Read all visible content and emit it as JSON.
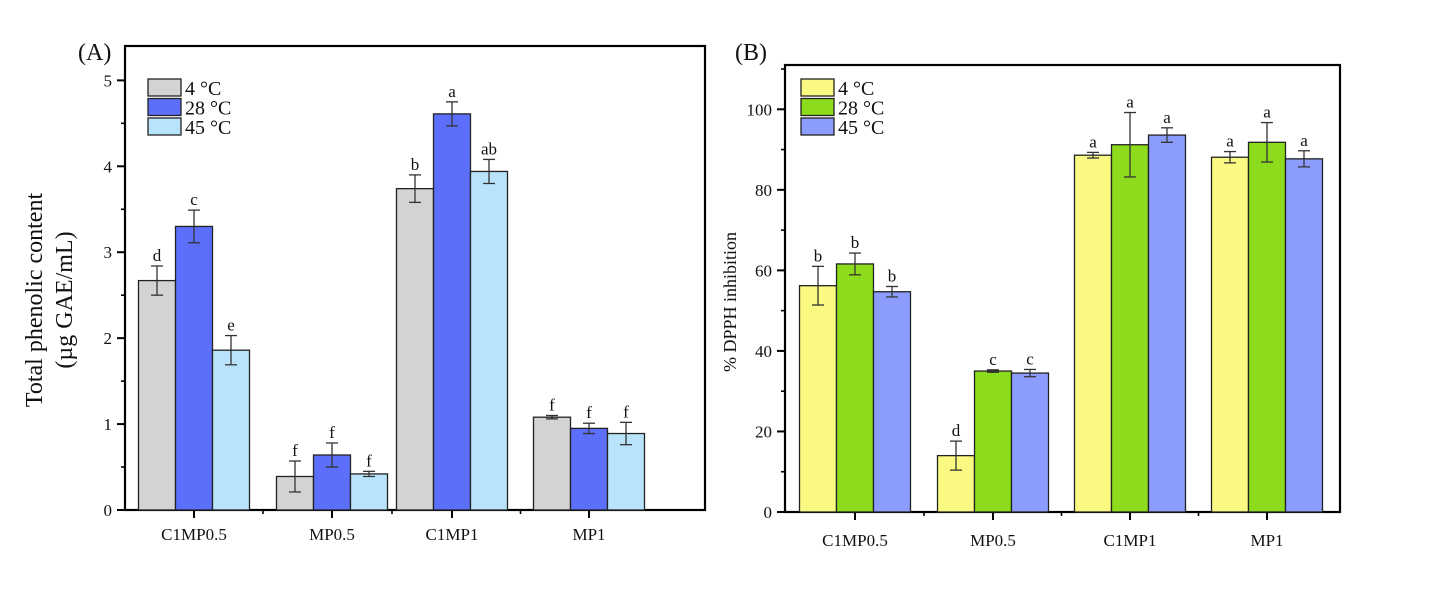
{
  "chart_data": [
    {
      "type": "bar",
      "panel": "(A)",
      "title": "",
      "xlabel": "",
      "ylabel_lines": [
        "Total phenolic content",
        "(µg GAE/mL)"
      ],
      "categories": [
        "C1MP0.5",
        "MP0.5",
        "C1MP1",
        "MP1"
      ],
      "ylim": [
        0,
        5.4
      ],
      "yticks": [
        0,
        1,
        2,
        3,
        4,
        5
      ],
      "ytick_labels": [
        "0",
        "1",
        "2",
        "3",
        "4",
        "5"
      ],
      "legend_position": "top-left",
      "grid": false,
      "series": [
        {
          "name": "4 °C",
          "color": "#d3d3d3",
          "values": [
            2.67,
            0.39,
            3.74,
            1.08
          ],
          "errors": [
            0.17,
            0.18,
            0.16,
            0.02
          ],
          "letters": [
            "d",
            "f",
            "b",
            "f"
          ]
        },
        {
          "name": "28 °C",
          "color": "#5b6ffb",
          "values": [
            3.3,
            0.64,
            4.61,
            0.95
          ],
          "errors": [
            0.19,
            0.14,
            0.14,
            0.06
          ],
          "letters": [
            "c",
            "f",
            "a",
            "f"
          ]
        },
        {
          "name": "45 °C",
          "color": "#b8e3fb",
          "values": [
            1.86,
            0.42,
            3.94,
            0.89
          ],
          "errors": [
            0.17,
            0.03,
            0.14,
            0.13
          ],
          "letters": [
            "e",
            "f",
            "ab",
            "f"
          ]
        }
      ]
    },
    {
      "type": "bar",
      "panel": "(B)",
      "title": "",
      "xlabel": "",
      "ylabel_lines": [
        "% DPPH inhibition"
      ],
      "categories": [
        "C1MP0.5",
        "MP0.5",
        "C1MP1",
        "MP1"
      ],
      "ylim": [
        0,
        111
      ],
      "yticks": [
        0,
        20,
        40,
        60,
        80,
        100
      ],
      "ytick_labels": [
        "0",
        "20",
        "40",
        "60",
        "80",
        "100"
      ],
      "legend_position": "top-left",
      "grid": false,
      "series": [
        {
          "name": "4 °C",
          "color": "#fafa82",
          "values": [
            56.2,
            14.0,
            88.6,
            88.1
          ],
          "errors": [
            4.8,
            3.6,
            0.7,
            1.4
          ],
          "letters": [
            "b",
            "d",
            "a",
            "a"
          ]
        },
        {
          "name": "28 °C",
          "color": "#8cdb1c",
          "values": [
            61.6,
            35.0,
            91.2,
            91.8
          ],
          "errors": [
            2.7,
            0.3,
            8.0,
            4.9
          ],
          "letters": [
            "b",
            "c",
            "a",
            "a"
          ]
        },
        {
          "name": "45 °C",
          "color": "#8b9cfc",
          "values": [
            54.7,
            34.5,
            93.6,
            87.7
          ],
          "errors": [
            1.3,
            0.9,
            1.8,
            2.0
          ],
          "letters": [
            "b",
            "c",
            "a",
            "a"
          ]
        }
      ]
    }
  ]
}
